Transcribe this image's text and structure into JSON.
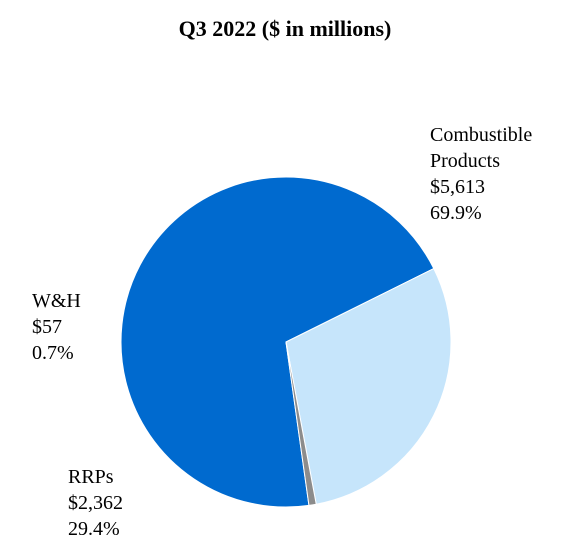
{
  "chart_data": {
    "type": "pie",
    "title": "Q3 2022 ($ in millions)",
    "slices": [
      {
        "name_lines": [
          "Combustible",
          "Products"
        ],
        "value_label": "$5,613",
        "value": 5613,
        "percent_label": "69.9%",
        "percent": 69.9,
        "color": "#006ACF"
      },
      {
        "name_lines": [
          "RRPs"
        ],
        "value_label": "$2,362",
        "value": 2362,
        "percent_label": "29.4%",
        "percent": 29.4,
        "color": "#C6E5FB"
      },
      {
        "name_lines": [
          "W&H"
        ],
        "value_label": "$57",
        "value": 57,
        "percent_label": "0.7%",
        "percent": 0.7,
        "color": "#8C8C8C"
      }
    ]
  }
}
